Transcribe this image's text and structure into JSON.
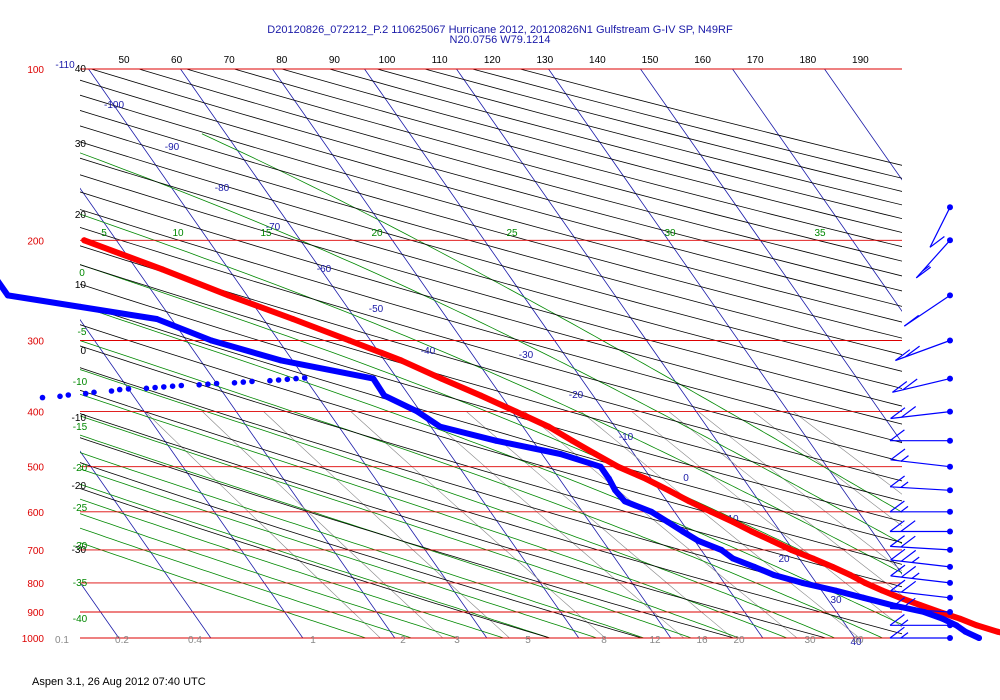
{
  "header": {
    "line1": "D20120826_072212_P.2 110625067 Hurricane 2012, 20120826N1 Gulfstream G-IV SP, N49RF",
    "line2": "N20.0756 W79.1214"
  },
  "footer": {
    "text": "Aspen 3.1, 26 Aug 2012  07:40 UTC"
  },
  "colors": {
    "isobar": "#dd0000",
    "isotherm": "#1a1aa8",
    "dry_adiabat": "#000000",
    "moist_adiabat": "#008800",
    "mixing_ratio": "#888888",
    "temperature": "#ff0000",
    "dewpoint": "#0000ff"
  },
  "chart_data": {
    "type": "skew-t",
    "pressure_axis": {
      "label_values": [
        "100",
        "200",
        "300",
        "400",
        "500",
        "600",
        "700",
        "800",
        "900",
        "1000"
      ]
    },
    "top_axis": {
      "label_values": [
        "50",
        "60",
        "70",
        "80",
        "90",
        "100",
        "110",
        "120",
        "130",
        "140",
        "150",
        "160",
        "170",
        "180",
        "190"
      ]
    },
    "isotherm_labels": [
      "-110",
      "-100",
      "-90",
      "-80",
      "-70",
      "-60",
      "-50",
      "-40",
      "-30",
      "-20",
      "-10",
      "0",
      "10",
      "20",
      "30",
      "40"
    ],
    "dry_adiabat_labels": [
      "40",
      "30",
      "20",
      "10",
      "0",
      "-10",
      "-20",
      "-30"
    ],
    "moist_adiabat_labels": [
      "5",
      "10",
      "15",
      "20",
      "25",
      "30",
      "35",
      "0",
      "-5",
      "-10",
      "-15",
      "-20",
      "-25",
      "-30",
      "-35",
      "-40"
    ],
    "mixing_ratio_labels": [
      "0.1",
      "0.2",
      "0.4",
      "1",
      "2",
      "3",
      "5",
      "8",
      "12",
      "16",
      "20",
      "30",
      "40"
    ],
    "temperature": {
      "pressure": [
        1000,
        990,
        975,
        950,
        925,
        900,
        875,
        850,
        825,
        800,
        775,
        750,
        725,
        700,
        675,
        650,
        625,
        600,
        575,
        550,
        525,
        500,
        475,
        450,
        425,
        400,
        375,
        350,
        325,
        300,
        275,
        250,
        225,
        200
      ],
      "temp_c": [
        28.0,
        27.3,
        26.0,
        24.2,
        22.9,
        21.2,
        19.6,
        18.0,
        16.6,
        15.3,
        14.3,
        13.0,
        11.5,
        9.8,
        8.4,
        6.9,
        5.6,
        4.0,
        2.4,
        1.0,
        -0.6,
        -2.7,
        -4.2,
        -5.7,
        -7.2,
        -9.6,
        -12.2,
        -15.2,
        -18.2,
        -22.3,
        -26.8,
        -32.0,
        -37.2,
        -43.5
      ]
    },
    "dewpoint": {
      "pressure": [
        1000,
        975,
        950,
        925,
        900,
        875,
        850,
        825,
        800,
        775,
        750,
        725,
        700,
        675,
        650,
        625,
        600,
        575,
        550,
        525,
        500,
        475,
        450,
        425,
        400,
        375,
        350,
        325,
        300,
        275,
        250,
        225,
        200
      ],
      "dewpoint_c": [
        23.5,
        22.5,
        22.0,
        21.0,
        19.5,
        16.5,
        14.0,
        11.5,
        8.5,
        6.0,
        4.5,
        2.8,
        2.2,
        0.4,
        -0.6,
        -1.5,
        -2.5,
        -4.6,
        -4.8,
        -4.6,
        -4.6,
        -8.0,
        -14.0,
        -19.0,
        -20.3,
        -22.7,
        -22.6,
        -31.3,
        -37.3,
        -41.6,
        -56.0,
        -56.0,
        -59.0
      ]
    },
    "dewpoint_scatter": {
      "pressure": [
        378,
        376,
        374,
        372,
        370,
        368,
        366,
        365,
        364,
        363,
        362,
        361,
        360,
        359,
        358,
        357,
        356,
        355,
        354,
        353,
        352,
        351,
        350,
        349
      ],
      "dewpoint_c": [
        -60,
        -58,
        -57,
        -55,
        -54,
        -52,
        -51,
        -50,
        -48,
        -47,
        -46,
        -45,
        -44,
        -42,
        -41,
        -40,
        -38,
        -37,
        -36,
        -34,
        -33,
        -32,
        -31,
        -30
      ]
    },
    "wind_barbs": {
      "pressure": [
        1000,
        950,
        900,
        850,
        800,
        750,
        700,
        650,
        600,
        550,
        500,
        450,
        400,
        350,
        300,
        250,
        200,
        175
      ],
      "speed_kt": [
        15,
        15,
        20,
        20,
        25,
        25,
        20,
        20,
        15,
        15,
        15,
        10,
        20,
        20,
        20,
        10,
        15,
        10
      ],
      "direction_deg": [
        90,
        90,
        95,
        100,
        100,
        100,
        95,
        90,
        90,
        95,
        100,
        90,
        80,
        70,
        60,
        40,
        20,
        0
      ]
    }
  }
}
